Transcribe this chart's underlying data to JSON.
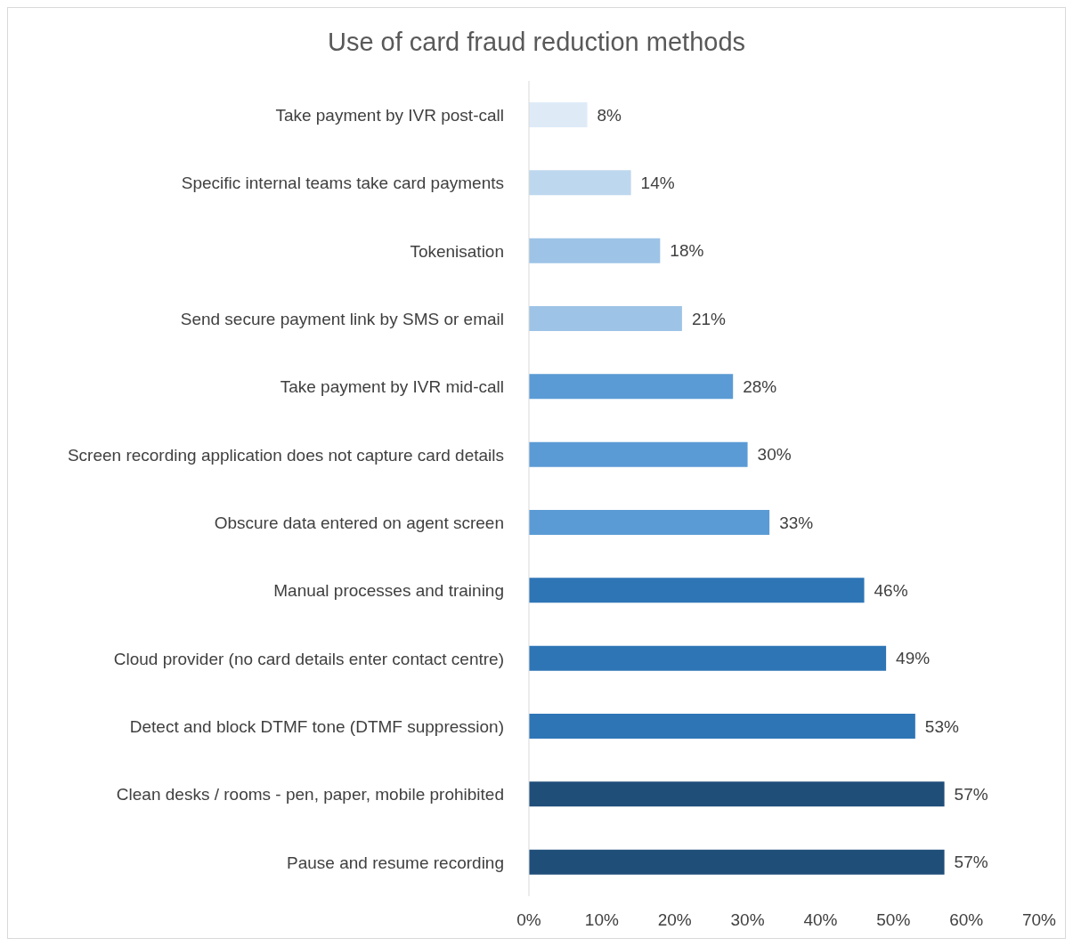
{
  "chart_data": {
    "type": "bar",
    "orientation": "horizontal",
    "title": "Use of card fraud reduction methods",
    "categories": [
      "Take payment by IVR post-call",
      "Specific internal teams take card payments",
      "Tokenisation",
      "Send secure payment link by SMS or email",
      "Take payment by IVR mid-call",
      "Screen recording application does not capture card details",
      "Obscure data entered on agent screen",
      "Manual processes and training",
      "Cloud provider (no card details enter contact centre)",
      "Detect and block DTMF tone (DTMF suppression)",
      "Clean desks / rooms - pen, paper, mobile prohibited",
      "Pause and resume recording"
    ],
    "values": [
      8,
      14,
      18,
      21,
      28,
      30,
      33,
      46,
      49,
      53,
      57,
      57
    ],
    "value_labels": [
      "8%",
      "14%",
      "18%",
      "21%",
      "28%",
      "30%",
      "33%",
      "46%",
      "49%",
      "53%",
      "57%",
      "57%"
    ],
    "colors": [
      "#deebf7",
      "#bdd7ee",
      "#9dc3e6",
      "#9dc3e6",
      "#5b9bd5",
      "#5b9bd5",
      "#5b9bd5",
      "#2e75b6",
      "#2e75b6",
      "#2e75b6",
      "#1f4e79",
      "#1f4e79"
    ],
    "xlim": [
      0,
      70
    ],
    "xticks": [
      {
        "value": 0,
        "label": "0%"
      },
      {
        "value": 10,
        "label": "10%"
      },
      {
        "value": 20,
        "label": "20%"
      },
      {
        "value": 30,
        "label": "30%"
      },
      {
        "value": 40,
        "label": "40%"
      },
      {
        "value": 50,
        "label": "50%"
      },
      {
        "value": 60,
        "label": "60%"
      },
      {
        "value": 70,
        "label": "70%"
      }
    ],
    "grid": false,
    "legend": false
  }
}
